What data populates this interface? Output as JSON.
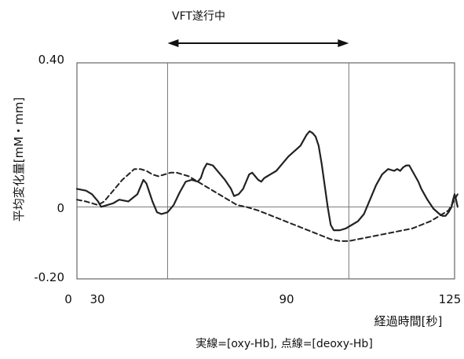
{
  "chart_data": {
    "type": "line",
    "annotation": {
      "label": "VFT遂行中",
      "x_range": [
        30,
        90
      ]
    },
    "ylabel": "平均変化量[mM・mm]",
    "xlabel": "経過時間[秒]",
    "caption": "実線=[oxy-Hb], 点線=[deoxy-Hb]",
    "xlim": [
      0,
      125
    ],
    "ylim": [
      -0.2,
      0.4
    ],
    "x_ticks": [
      {
        "value": 0,
        "label": "0"
      },
      {
        "value": 30,
        "label": "30"
      },
      {
        "value": 90,
        "label": "90"
      },
      {
        "value": 125,
        "label": "125"
      }
    ],
    "y_ticks": [
      {
        "value": 0.4,
        "label": "0.40"
      },
      {
        "value": 0,
        "label": "0"
      },
      {
        "value": -0.2,
        "label": "-0.20"
      }
    ],
    "vertical_lines": [
      30,
      90
    ],
    "zero_line": 0,
    "series": [
      {
        "style": "solid",
        "color": "#222222",
        "points": [
          [
            0,
            0.05
          ],
          [
            3,
            0.045
          ],
          [
            5,
            0.035
          ],
          [
            7,
            0.015
          ],
          [
            8,
            0.0
          ],
          [
            10,
            0.005
          ],
          [
            12,
            0.01
          ],
          [
            14,
            0.02
          ],
          [
            17,
            0.015
          ],
          [
            20,
            0.035
          ],
          [
            22,
            0.075
          ],
          [
            23,
            0.065
          ],
          [
            24,
            0.04
          ],
          [
            25,
            0.015
          ],
          [
            26.5,
            -0.015
          ],
          [
            28,
            -0.02
          ],
          [
            30,
            -0.015
          ],
          [
            32,
            0.005
          ],
          [
            34,
            0.04
          ],
          [
            36,
            0.07
          ],
          [
            38,
            0.075
          ],
          [
            40,
            0.07
          ],
          [
            41,
            0.08
          ],
          [
            42,
            0.105
          ],
          [
            43,
            0.12
          ],
          [
            45,
            0.115
          ],
          [
            47,
            0.095
          ],
          [
            49,
            0.075
          ],
          [
            51,
            0.05
          ],
          [
            52,
            0.03
          ],
          [
            53.5,
            0.035
          ],
          [
            55,
            0.05
          ],
          [
            56,
            0.07
          ],
          [
            57,
            0.09
          ],
          [
            58,
            0.095
          ],
          [
            59,
            0.085
          ],
          [
            60,
            0.075
          ],
          [
            61,
            0.07
          ],
          [
            62,
            0.08
          ],
          [
            63,
            0.085
          ],
          [
            64,
            0.09
          ],
          [
            66,
            0.1
          ],
          [
            68,
            0.12
          ],
          [
            70,
            0.14
          ],
          [
            72,
            0.155
          ],
          [
            74,
            0.17
          ],
          [
            75,
            0.185
          ],
          [
            76,
            0.2
          ],
          [
            77,
            0.21
          ],
          [
            78,
            0.205
          ],
          [
            79,
            0.195
          ],
          [
            80,
            0.17
          ],
          [
            81,
            0.12
          ],
          [
            82,
            0.06
          ],
          [
            83,
            0.0
          ],
          [
            84,
            -0.05
          ],
          [
            85,
            -0.065
          ],
          [
            87,
            -0.065
          ],
          [
            89,
            -0.06
          ],
          [
            91,
            -0.05
          ],
          [
            93,
            -0.04
          ],
          [
            95,
            -0.02
          ],
          [
            97,
            0.02
          ],
          [
            99,
            0.06
          ],
          [
            101,
            0.09
          ],
          [
            103,
            0.105
          ],
          [
            105,
            0.1
          ],
          [
            106,
            0.105
          ],
          [
            107,
            0.1
          ],
          [
            108,
            0.11
          ],
          [
            109,
            0.115
          ],
          [
            110,
            0.115
          ],
          [
            111,
            0.1
          ],
          [
            112,
            0.085
          ],
          [
            113,
            0.07
          ],
          [
            114,
            0.05
          ],
          [
            116,
            0.02
          ],
          [
            118,
            -0.005
          ],
          [
            120,
            -0.02
          ],
          [
            121,
            -0.025
          ],
          [
            122,
            -0.025
          ],
          [
            123,
            -0.015
          ],
          [
            124,
            0.0
          ],
          [
            124.5,
            0.02
          ],
          [
            125,
            0.035
          ],
          [
            125.5,
            0.02
          ],
          [
            126,
            0.0
          ]
        ]
      },
      {
        "style": "dashed",
        "color": "#222222",
        "points": [
          [
            0,
            0.02
          ],
          [
            3,
            0.015
          ],
          [
            5,
            0.01
          ],
          [
            7,
            0.005
          ],
          [
            9,
            0.015
          ],
          [
            11,
            0.035
          ],
          [
            13,
            0.055
          ],
          [
            15,
            0.075
          ],
          [
            17,
            0.09
          ],
          [
            19,
            0.105
          ],
          [
            21,
            0.105
          ],
          [
            23,
            0.1
          ],
          [
            25,
            0.09
          ],
          [
            27,
            0.085
          ],
          [
            29,
            0.09
          ],
          [
            31,
            0.095
          ],
          [
            33,
            0.095
          ],
          [
            35,
            0.09
          ],
          [
            37,
            0.085
          ],
          [
            39,
            0.075
          ],
          [
            41,
            0.065
          ],
          [
            43,
            0.055
          ],
          [
            45,
            0.045
          ],
          [
            47,
            0.035
          ],
          [
            49,
            0.025
          ],
          [
            51,
            0.015
          ],
          [
            53,
            0.005
          ],
          [
            56,
            0.0
          ],
          [
            58,
            -0.005
          ],
          [
            60,
            -0.01
          ],
          [
            63,
            -0.02
          ],
          [
            66,
            -0.03
          ],
          [
            69,
            -0.04
          ],
          [
            72,
            -0.05
          ],
          [
            75,
            -0.06
          ],
          [
            78,
            -0.07
          ],
          [
            81,
            -0.08
          ],
          [
            84,
            -0.09
          ],
          [
            87,
            -0.095
          ],
          [
            90,
            -0.095
          ],
          [
            93,
            -0.09
          ],
          [
            96,
            -0.085
          ],
          [
            99,
            -0.08
          ],
          [
            102,
            -0.075
          ],
          [
            105,
            -0.07
          ],
          [
            108,
            -0.065
          ],
          [
            111,
            -0.06
          ],
          [
            114,
            -0.05
          ],
          [
            117,
            -0.04
          ],
          [
            119,
            -0.03
          ],
          [
            121,
            -0.02
          ],
          [
            123,
            -0.01
          ],
          [
            124,
            0.005
          ],
          [
            125,
            0.02
          ],
          [
            126,
            0.035
          ]
        ]
      }
    ]
  }
}
